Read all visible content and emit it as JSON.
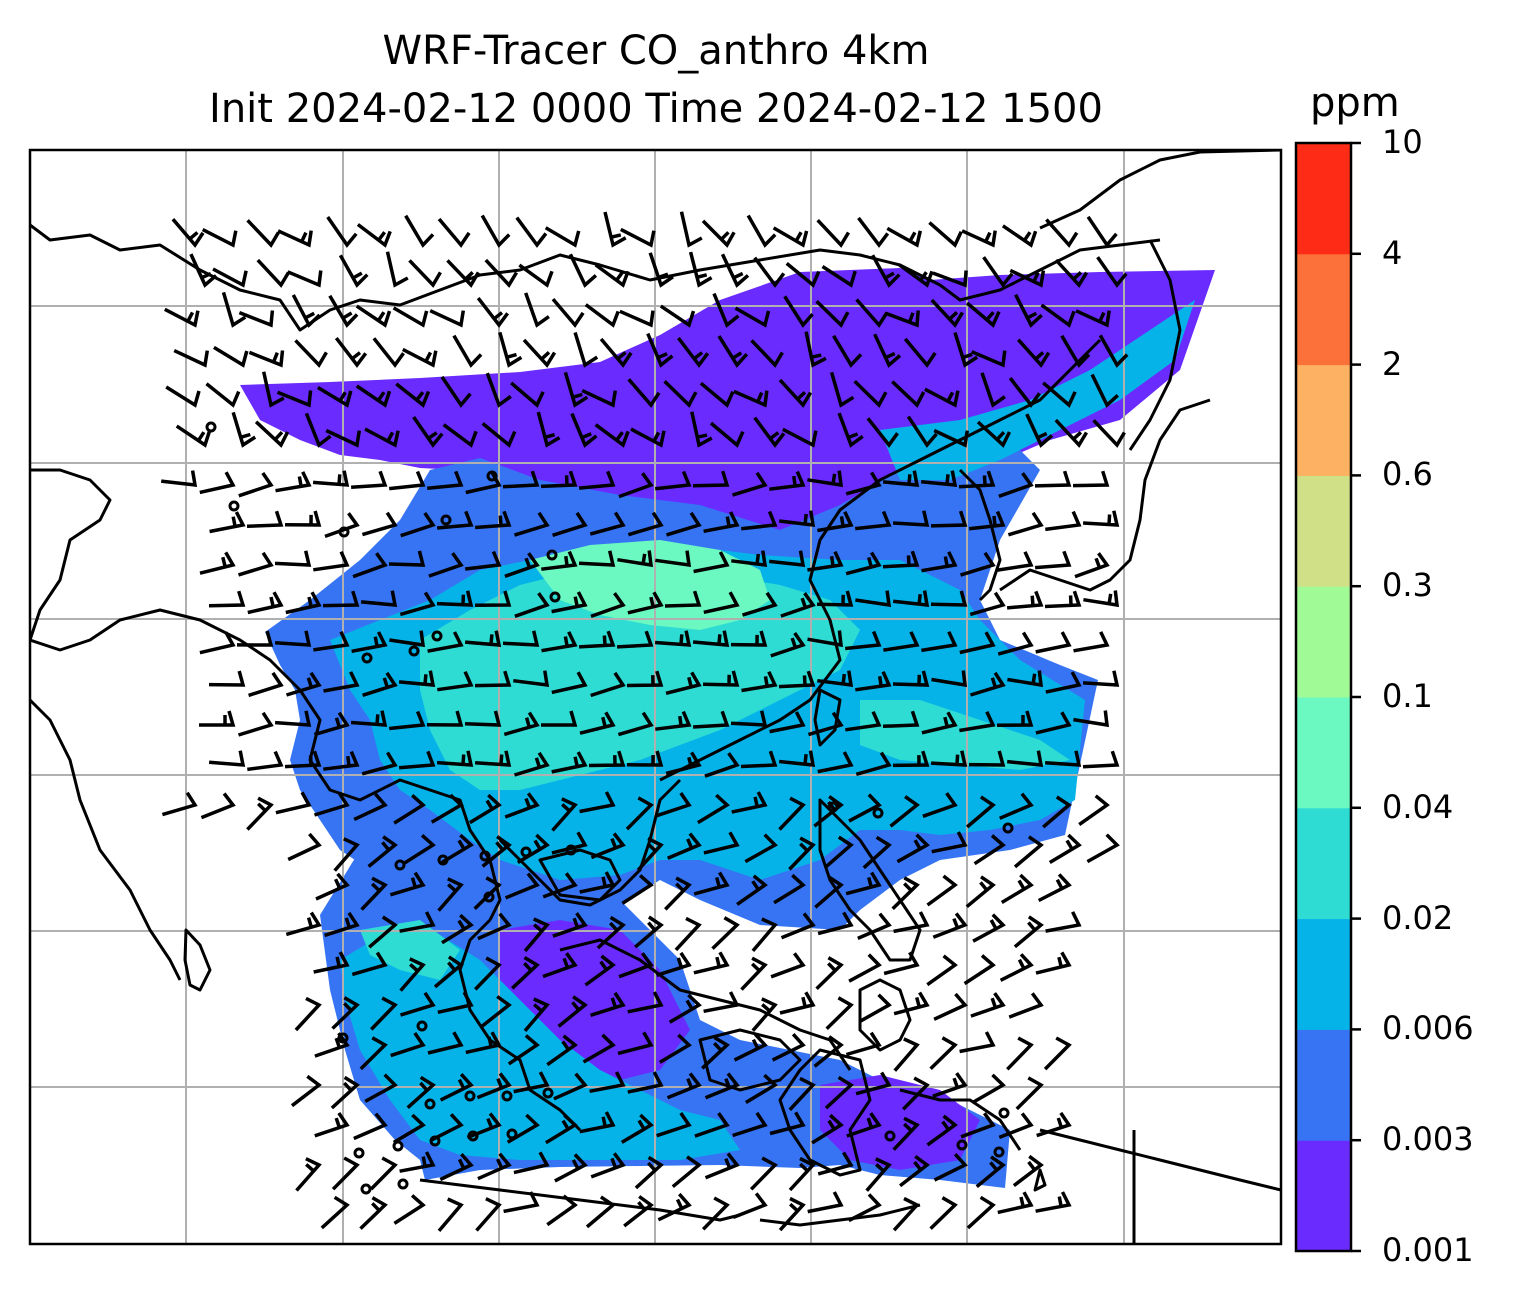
{
  "title": {
    "line1": "WRF-Tracer CO_anthro 4km",
    "line2": "Init 2024-02-12 0000 Time 2024-02-12 1500"
  },
  "colorbar": {
    "unit": "ppm",
    "ticks": [
      "0.001",
      "0.003",
      "0.006",
      "0.02",
      "0.04",
      "0.1",
      "0.3",
      "0.6",
      "2",
      "4",
      "10"
    ],
    "colors": [
      "#6a2bff",
      "#3674f4",
      "#06b3e8",
      "#2edcd4",
      "#6cf9c1",
      "#a0fb96",
      "#cfe087",
      "#fdb162",
      "#fc713a",
      "#fe2c16"
    ]
  },
  "map": {
    "gridlines": true,
    "data_colors": {
      "low": "#6a2bff",
      "mid_low": "#3674f4",
      "mid": "#06b3e8",
      "mid_high": "#2edcd4",
      "high": "#6cf9c1"
    }
  }
}
